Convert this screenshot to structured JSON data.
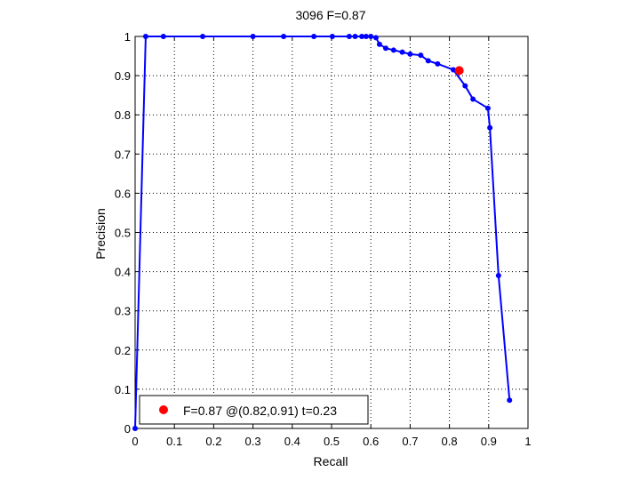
{
  "chart_data": {
    "type": "line",
    "title": "3096 F=0.87",
    "xlabel": "Recall",
    "ylabel": "Precision",
    "xlim": [
      0,
      1
    ],
    "ylim": [
      0,
      1
    ],
    "xticks": [
      0,
      0.1,
      0.2,
      0.3,
      0.4,
      0.5,
      0.6,
      0.7,
      0.8,
      0.9,
      1
    ],
    "xtick_labels": [
      "0",
      "0.1",
      "0.2",
      "0.3",
      "0.4",
      "0.5",
      "0.6",
      "0.7",
      "0.8",
      "0.9",
      "1"
    ],
    "yticks": [
      0,
      0.1,
      0.2,
      0.3,
      0.4,
      0.5,
      0.6,
      0.7,
      0.8,
      0.9,
      1
    ],
    "ytick_labels": [
      "0",
      "0.1",
      "0.2",
      "0.3",
      "0.4",
      "0.5",
      "0.6",
      "0.7",
      "0.8",
      "0.9",
      "1"
    ],
    "grid": true,
    "series": [
      {
        "color": "#0000ff",
        "x": [
          0,
          0.027,
          0.072,
          0.172,
          0.3,
          0.378,
          0.455,
          0.502,
          0.545,
          0.56,
          0.577,
          0.588,
          0.6,
          0.613,
          0.622,
          0.638,
          0.658,
          0.68,
          0.7,
          0.727,
          0.746,
          0.77,
          0.81,
          0.84,
          0.86,
          0.898,
          0.903,
          0.925,
          0.953
        ],
        "y": [
          0,
          1,
          1,
          1,
          1,
          1,
          1,
          1,
          1,
          1,
          1,
          1,
          1,
          0.997,
          0.98,
          0.97,
          0.965,
          0.96,
          0.955,
          0.952,
          0.938,
          0.93,
          0.915,
          0.874,
          0.84,
          0.817,
          0.767,
          0.39,
          0.072
        ]
      }
    ],
    "highlight_point": {
      "x": 0.825,
      "y": 0.913,
      "color": "#ff0000"
    },
    "legend": {
      "position": "bottom-left",
      "label": "F=0.87 @(0.82,0.91) t=0.23",
      "marker_color": "#ff0000"
    }
  }
}
